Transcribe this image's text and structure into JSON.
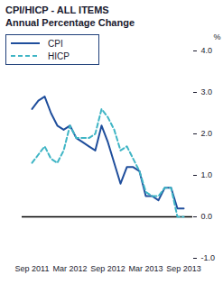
{
  "chart_data": {
    "type": "line",
    "title": "CPI/HICP - ALL ITEMS",
    "subtitle": "Annual Percentage Change",
    "y_label": "%",
    "categories": [
      "Sep 2011",
      null,
      null,
      null,
      null,
      null,
      "Mar 2012",
      null,
      null,
      null,
      null,
      null,
      "Sep 2012",
      null,
      null,
      null,
      null,
      null,
      "Mar 2013",
      null,
      null,
      null,
      null,
      null,
      "Sep 2013"
    ],
    "series": [
      {
        "name": "CPI",
        "color": "#1f4e9c",
        "line_style": "solid",
        "values": [
          2.6,
          2.8,
          2.9,
          2.5,
          2.2,
          2.1,
          2.2,
          1.9,
          1.8,
          1.7,
          1.6,
          2.2,
          1.8,
          1.3,
          0.8,
          1.2,
          1.2,
          1.1,
          0.5,
          0.5,
          0.4,
          0.7,
          0.7,
          0.2,
          0.2
        ]
      },
      {
        "name": "HICP",
        "color": "#3fb5c5",
        "line_style": "dashed",
        "values": [
          1.3,
          1.5,
          1.7,
          1.4,
          1.3,
          1.6,
          2.2,
          1.9,
          1.9,
          1.9,
          2.0,
          2.6,
          2.4,
          2.1,
          1.6,
          1.7,
          1.4,
          1.1,
          0.6,
          0.5,
          0.5,
          0.7,
          0.7,
          0.0,
          0.0
        ]
      }
    ],
    "ylim": [
      -1,
      4
    ],
    "yticks": [
      {
        "value": -1,
        "label": "-1.0"
      },
      {
        "value": 0,
        "label": "0.0"
      },
      {
        "value": 1,
        "label": "1.0"
      },
      {
        "value": 2,
        "label": "2.0"
      },
      {
        "value": 3,
        "label": "3.0"
      },
      {
        "value": 4,
        "label": "4.0"
      }
    ],
    "grid": false,
    "legend": "top-left"
  }
}
